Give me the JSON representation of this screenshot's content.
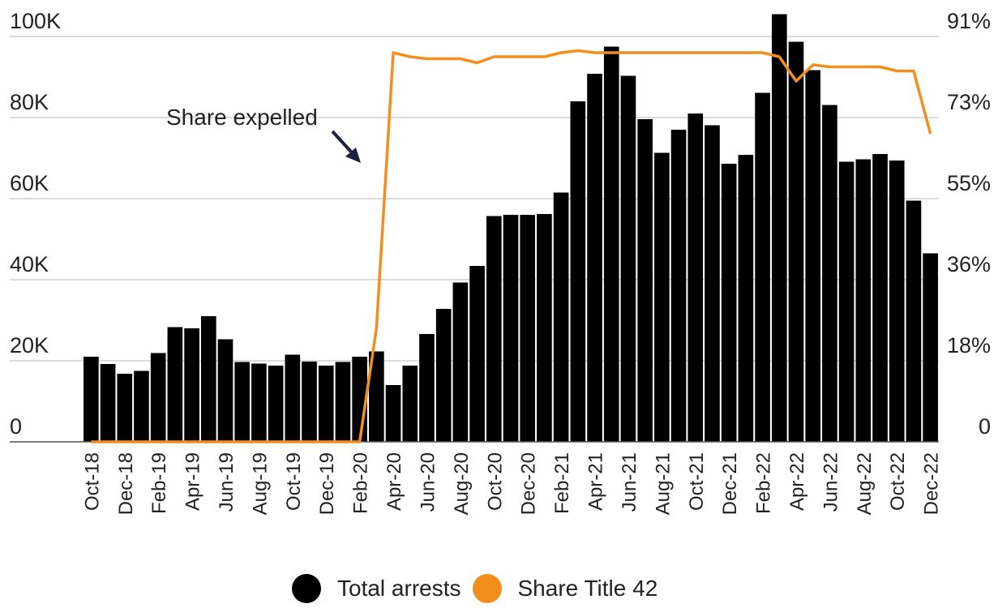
{
  "chart_data": {
    "type": "bar",
    "categories": [
      "Oct-18",
      "Nov-18",
      "Dec-18",
      "Jan-19",
      "Feb-19",
      "Mar-19",
      "Apr-19",
      "May-19",
      "Jun-19",
      "Jul-19",
      "Aug-19",
      "Sep-19",
      "Oct-19",
      "Nov-19",
      "Dec-19",
      "Jan-20",
      "Feb-20",
      "Mar-20",
      "Apr-20",
      "May-20",
      "Jun-20",
      "Jul-20",
      "Aug-20",
      "Sep-20",
      "Oct-20",
      "Nov-20",
      "Dec-20",
      "Jan-21",
      "Feb-21",
      "Mar-21",
      "Apr-21",
      "May-21",
      "Jun-21",
      "Jul-21",
      "Aug-21",
      "Sep-21",
      "Oct-21",
      "Nov-21",
      "Dec-21",
      "Jan-22",
      "Feb-22",
      "Mar-22",
      "Apr-22",
      "May-22",
      "Jun-22",
      "Jul-22",
      "Aug-22",
      "Sep-22",
      "Oct-22",
      "Nov-22",
      "Dec-22"
    ],
    "x_tick_labels": [
      "Oct-18",
      "Dec-18",
      "Feb-19",
      "Apr-19",
      "Jun-19",
      "Aug-19",
      "Oct-19",
      "Dec-19",
      "Feb-20",
      "Apr-20",
      "Jun-20",
      "Aug-20",
      "Oct-20",
      "Dec-20",
      "Feb-21",
      "Apr-21",
      "Jun-21",
      "Aug-21",
      "Oct-21",
      "Dec-21",
      "Feb-22",
      "Apr-22",
      "Jun-22",
      "Aug-22",
      "Oct-22",
      "Dec-22"
    ],
    "series": [
      {
        "name": "Total arrests",
        "kind": "bar",
        "axis": "left",
        "color": "#000000",
        "values": [
          21000,
          19200,
          16800,
          17500,
          21900,
          28300,
          28000,
          31000,
          25300,
          19700,
          19300,
          18800,
          21500,
          19800,
          18800,
          19700,
          21000,
          22300,
          14000,
          18800,
          26600,
          32800,
          39300,
          43400,
          55700,
          56000,
          56000,
          56200,
          61500,
          84000,
          90800,
          97500,
          90300,
          79600,
          71300,
          77000,
          81000,
          78100,
          68600,
          70800,
          86100,
          105500,
          98700,
          91700,
          83100,
          69100,
          69700,
          71000,
          69400,
          59500,
          46500
        ]
      },
      {
        "name": "Share Title 42",
        "kind": "line",
        "axis": "right",
        "color": "#F28E1E",
        "values": [
          0,
          0,
          0,
          0,
          0,
          0,
          0,
          0,
          0,
          0,
          0,
          0,
          0,
          0,
          0,
          0,
          0,
          28,
          96,
          95,
          94.5,
          94.5,
          94.5,
          93.5,
          95,
          95,
          95,
          95,
          96,
          96.5,
          96,
          96,
          96,
          96,
          96,
          96,
          96,
          96,
          96,
          96,
          96,
          95,
          89,
          93,
          92.5,
          92.5,
          92.5,
          92.5,
          91.5,
          91.5,
          76
        ]
      }
    ],
    "y_left": {
      "ylim": [
        0,
        100000
      ],
      "ticks": [
        "0",
        "20K",
        "40K",
        "60K",
        "80K",
        "100K"
      ]
    },
    "y_right": {
      "ticks": [
        "0",
        "18%",
        "36%",
        "55%",
        "73%",
        "91%"
      ]
    },
    "annotation": {
      "text": "Share expelled",
      "arrow_to_category": "Mar-20"
    },
    "grid": true,
    "legend_position": "bottom-center"
  },
  "legend": {
    "items": [
      {
        "label": "Total arrests",
        "color": "#000000"
      },
      {
        "label": "Share Title 42",
        "color": "#F28E1E"
      }
    ]
  }
}
